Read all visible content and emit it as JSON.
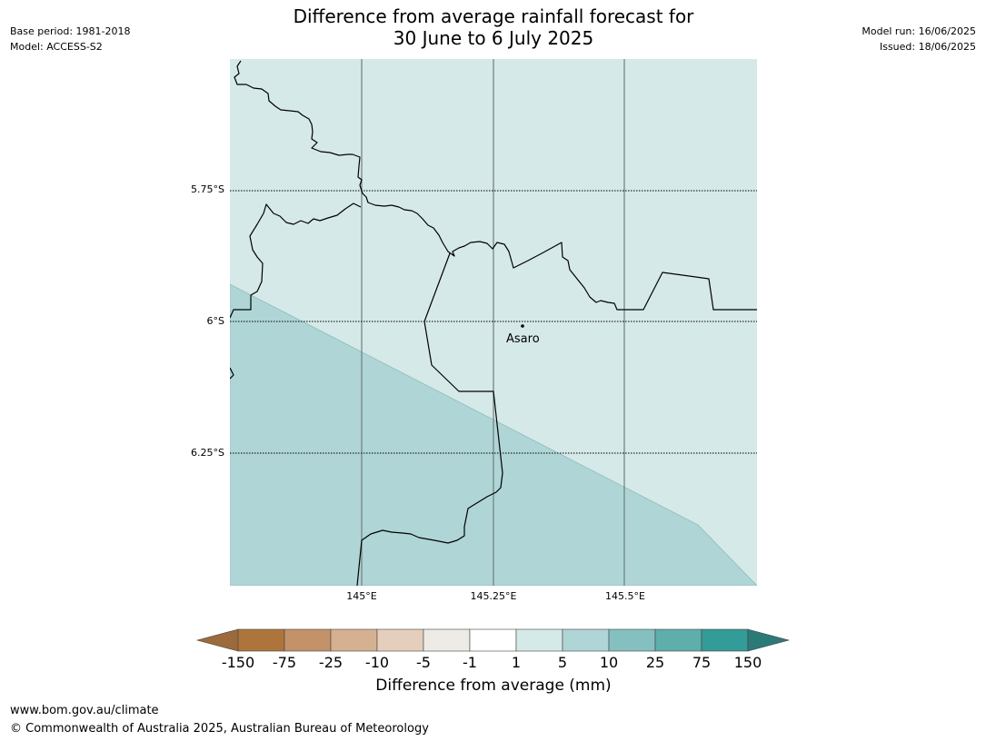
{
  "header": {
    "base_period": "Base period: 1981-2018",
    "model": "Model: ACCESS-S2",
    "title_line1": "Difference from average rainfall forecast for",
    "title_line2": "30 June to 6 July 2025",
    "model_run": "Model run: 16/06/2025",
    "issued": "Issued: 18/06/2025"
  },
  "map": {
    "latitude_labels": [
      "5.75°S",
      "6°S",
      "6.25°S"
    ],
    "longitude_labels": [
      "145°E",
      "145.25°E",
      "145.5°E"
    ],
    "place": "Asaro",
    "colors": {
      "light_teal": "#d5e9e8",
      "medium_teal": "#afd5d6"
    }
  },
  "legend": {
    "title": "Difference from average (mm)",
    "ticks": [
      "-150",
      "-75",
      "-25",
      "-10",
      "-5",
      "-1",
      "1",
      "5",
      "10",
      "25",
      "75",
      "150"
    ],
    "colors": [
      "#9d6a3c",
      "#ad753c",
      "#c39269",
      "#d5b191",
      "#e5cfbc",
      "#eeebe7",
      "#ffffff",
      "#d5e9e8",
      "#afd5d6",
      "#84c0bf",
      "#5eaeac",
      "#339b98",
      "#2c7a78"
    ]
  },
  "footer": {
    "url": "www.bom.gov.au/climate",
    "copyright": "© Commonwealth of Australia 2025, Australian Bureau of Meteorology"
  }
}
